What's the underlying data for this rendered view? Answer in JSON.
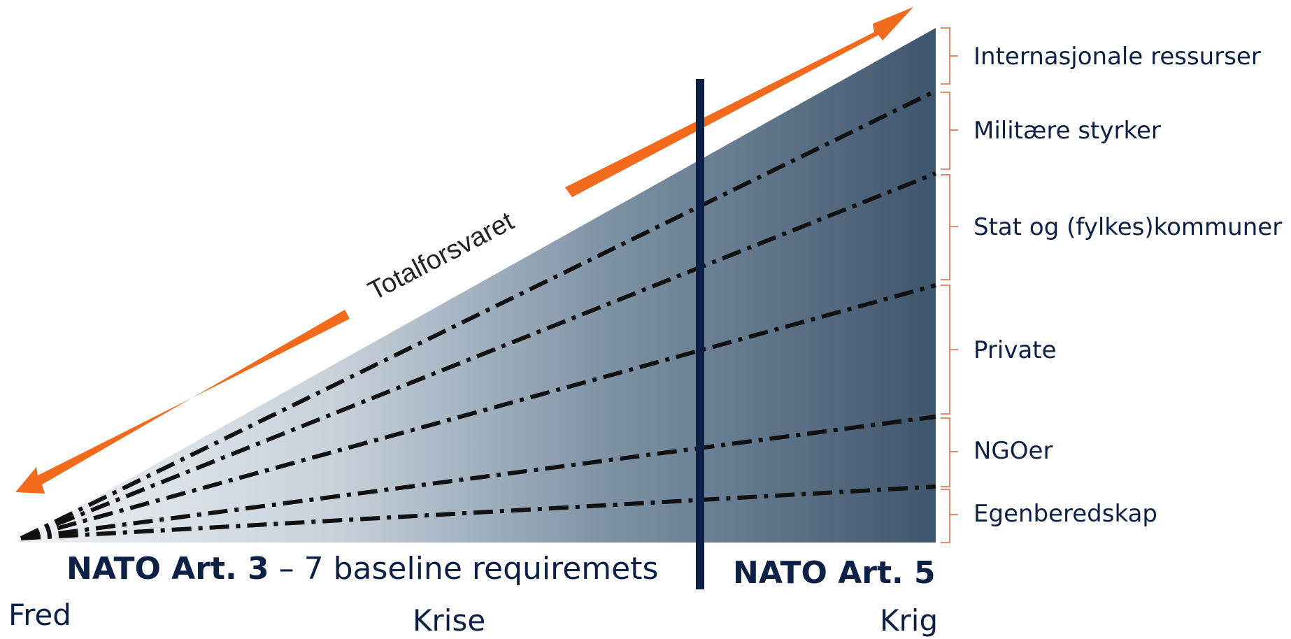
{
  "diagram": {
    "diagonal_label": "Totalforsvaret",
    "layers": [
      "Internasjonale ressurser",
      "Militære styrker",
      "Stat og (fylkes)kommuner",
      "Private",
      "NGOer",
      "Egenberedskap"
    ],
    "art3": {
      "bold": "NATO Art. 3",
      "rest": " – 7 baseline requiremets"
    },
    "art5": "NATO Art. 5",
    "phases": {
      "peace": "Fred",
      "crisis": "Krise",
      "war": "Krig"
    },
    "colors": {
      "wedge_light": "#e9edf1",
      "wedge_mid": "#9fb0bf",
      "wedge_dark": "#3f5870",
      "arrow": "#f26a1b",
      "divider": "#0d2045",
      "bracket": "#e08a66",
      "text": "#0d2045"
    }
  }
}
